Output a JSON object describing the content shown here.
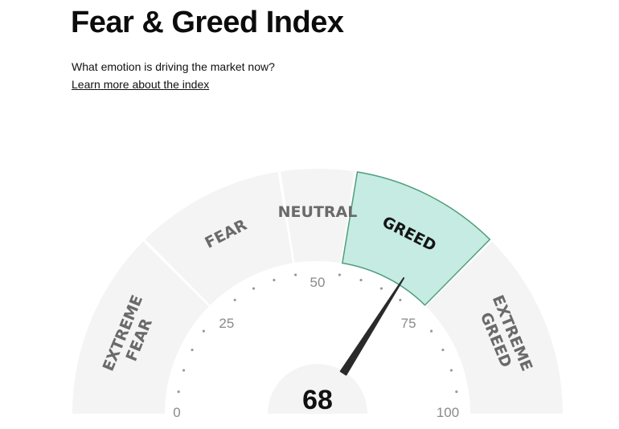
{
  "header": {
    "title": "Fear & Greed Index",
    "subtitle": "What emotion is driving the market now?",
    "learn_more_link": "Learn more about the index"
  },
  "gauge": {
    "value": 68,
    "value_text": "68",
    "active_segment": "greed",
    "colors": {
      "segment_fill": "#f4f4f4",
      "active_fill": "#c5ebe3",
      "active_border": "#4e9e78",
      "inner_fill": "#ffffff",
      "needle": "#2a2a2a"
    },
    "segments": [
      {
        "id": "extreme-fear",
        "lines": [
          "EXTREME",
          "FEAR"
        ],
        "from": 0,
        "to": 25
      },
      {
        "id": "fear",
        "lines": [
          "FEAR"
        ],
        "from": 25,
        "to": 45
      },
      {
        "id": "neutral",
        "lines": [
          "NEUTRAL"
        ],
        "from": 45,
        "to": 55
      },
      {
        "id": "greed",
        "lines": [
          "GREED"
        ],
        "from": 55,
        "to": 75
      },
      {
        "id": "extreme-greed",
        "lines": [
          "EXTREME",
          "GREED"
        ],
        "from": 75,
        "to": 100
      }
    ],
    "scale_labels": [
      {
        "value": 0,
        "text": "0"
      },
      {
        "value": 25,
        "text": "25"
      },
      {
        "value": 50,
        "text": "50"
      },
      {
        "value": 75,
        "text": "75"
      },
      {
        "value": 100,
        "text": "100"
      }
    ]
  }
}
